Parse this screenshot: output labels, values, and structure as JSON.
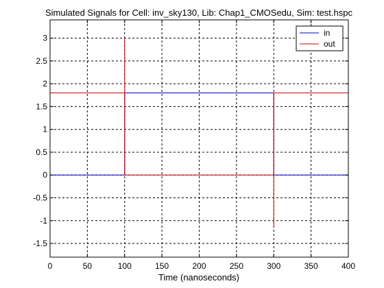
{
  "chart_data": {
    "type": "line",
    "title": "Simulated Signals for Cell: inv_sky130, Lib: Chap1_CMOSedu, Sim: test.hspc",
    "xlabel": "Time (nanoseconds)",
    "ylabel": "",
    "xlim": [
      0,
      400
    ],
    "ylim": [
      -1.8,
      3.4
    ],
    "xticks": [
      0,
      50,
      100,
      150,
      200,
      250,
      300,
      350,
      400
    ],
    "xtick_labels": [
      "0",
      "50",
      "100",
      "150",
      "200",
      "250",
      "300",
      "350",
      "400"
    ],
    "yticks": [
      3,
      2.5,
      2,
      1.5,
      1,
      0.5,
      0,
      -0.5,
      -1,
      -1.5
    ],
    "ytick_labels": [
      "3",
      "2.5",
      "2",
      "1.5",
      "1",
      "0.5",
      "0",
      "-0.5",
      "-1",
      "-1.5"
    ],
    "grid": true,
    "legend_position": "top-right",
    "series": [
      {
        "name": "in",
        "color": "#0000cc",
        "x": [
          0,
          100,
          100,
          300,
          300,
          400
        ],
        "y": [
          0,
          0,
          1.8,
          1.8,
          0,
          0
        ]
      },
      {
        "name": "out",
        "color": "#cc0000",
        "x": [
          0,
          100,
          100,
          100,
          300,
          300,
          300,
          400
        ],
        "y": [
          1.8,
          1.8,
          3.0,
          0,
          0,
          -1.15,
          1.8,
          1.8
        ]
      }
    ]
  }
}
